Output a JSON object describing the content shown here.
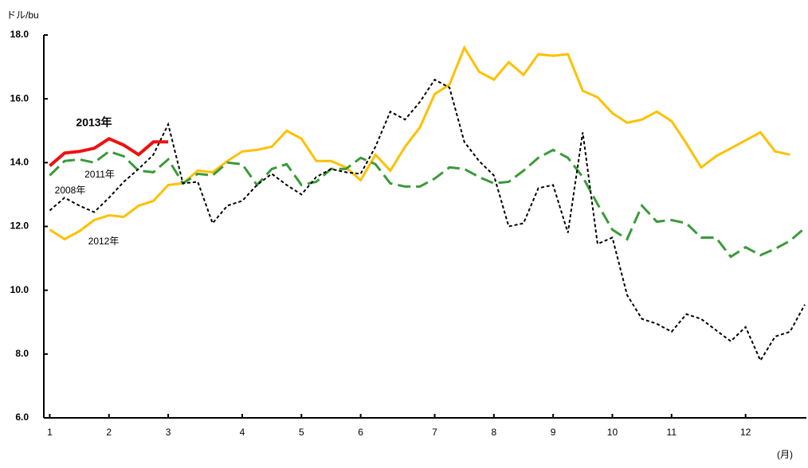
{
  "chart_data": {
    "type": "line",
    "y_unit": "ドル/bu",
    "x_unit": "(月)",
    "xlim": [
      -0.4,
      51
    ],
    "ylim": [
      6,
      18
    ],
    "xticks": [
      {
        "value": 0,
        "label": "1"
      },
      {
        "value": 4,
        "label": "2"
      },
      {
        "value": 8,
        "label": "3"
      },
      {
        "value": 13,
        "label": "4"
      },
      {
        "value": 17,
        "label": "5"
      },
      {
        "value": 21,
        "label": "6"
      },
      {
        "value": 26,
        "label": "7"
      },
      {
        "value": 30,
        "label": "8"
      },
      {
        "value": 34,
        "label": "9"
      },
      {
        "value": 38,
        "label": "10"
      },
      {
        "value": 42,
        "label": "11"
      },
      {
        "value": 47,
        "label": "12"
      }
    ],
    "yticks": [
      {
        "value": 6,
        "label": "6.0"
      },
      {
        "value": 8,
        "label": "8.0"
      },
      {
        "value": 10,
        "label": "10.0"
      },
      {
        "value": 12,
        "label": "12.0"
      },
      {
        "value": 14,
        "label": "14.0"
      },
      {
        "value": 16,
        "label": "16.0"
      },
      {
        "value": 18,
        "label": "18.0"
      }
    ],
    "x": [
      0,
      1,
      2,
      3,
      4,
      5,
      6,
      7,
      8,
      9,
      10,
      11,
      12,
      13,
      14,
      15,
      16,
      17,
      18,
      19,
      20,
      21,
      22,
      23,
      24,
      25,
      26,
      27,
      28,
      29,
      30,
      31,
      32,
      33,
      34,
      35,
      36,
      37,
      38,
      39,
      40,
      41,
      42,
      43,
      44,
      45,
      46,
      47,
      48,
      49,
      50,
      51
    ],
    "series": [
      {
        "name": "2012年",
        "color": "#ffc000",
        "dash": "solid",
        "values": [
          11.9,
          11.6,
          11.85,
          12.2,
          12.35,
          12.3,
          12.65,
          12.8,
          13.3,
          13.35,
          13.75,
          13.7,
          14.05,
          14.35,
          14.4,
          14.5,
          15.0,
          14.75,
          14.05,
          14.05,
          13.85,
          13.45,
          14.25,
          13.75,
          14.5,
          15.1,
          16.15,
          16.45,
          17.6,
          16.85,
          16.6,
          17.15,
          16.75,
          17.4,
          17.35,
          17.4,
          16.25,
          16.05,
          15.55,
          15.25,
          15.35,
          15.6,
          15.3,
          14.6,
          13.85,
          14.2,
          14.45,
          14.7,
          14.95,
          14.35,
          14.25,
          null
        ]
      },
      {
        "name": "2011年",
        "color": "#3a9a3a",
        "dash": "dashed",
        "values": [
          13.6,
          14.05,
          14.1,
          14.0,
          14.35,
          14.2,
          13.75,
          13.7,
          14.1,
          13.35,
          13.65,
          13.6,
          14.0,
          13.95,
          13.3,
          13.8,
          13.95,
          13.3,
          13.4,
          13.8,
          13.8,
          14.15,
          13.95,
          13.35,
          13.25,
          13.25,
          13.5,
          13.85,
          13.8,
          13.55,
          13.35,
          13.4,
          13.75,
          14.15,
          14.4,
          14.15,
          13.55,
          12.7,
          11.9,
          11.6,
          12.65,
          12.15,
          12.2,
          12.1,
          11.65,
          11.65,
          11.05,
          11.35,
          11.1,
          11.3,
          11.55,
          11.95
        ]
      },
      {
        "name": "2008年",
        "color": "#000000",
        "dash": "dotted",
        "values": [
          12.5,
          12.9,
          12.65,
          12.45,
          12.9,
          13.4,
          13.8,
          14.25,
          15.2,
          13.35,
          13.4,
          12.1,
          12.65,
          12.8,
          13.3,
          13.65,
          13.3,
          13.0,
          13.55,
          13.8,
          13.7,
          13.65,
          14.5,
          15.6,
          15.35,
          15.9,
          16.6,
          16.35,
          14.65,
          14.05,
          13.6,
          12.0,
          12.1,
          13.2,
          13.3,
          11.8,
          14.95,
          11.45,
          11.65,
          9.85,
          9.1,
          8.95,
          8.7,
          9.25,
          9.1,
          8.75,
          8.4,
          8.85,
          7.8,
          8.55,
          8.7,
          9.55
        ]
      },
      {
        "name": "2013年",
        "color": "#ee1111",
        "dash": "solid",
        "values": [
          13.9,
          14.3,
          14.35,
          14.45,
          14.75,
          14.55,
          14.25,
          14.65,
          14.65,
          null,
          null,
          null,
          null,
          null,
          null,
          null,
          null,
          null,
          null,
          null,
          null,
          null,
          null,
          null,
          null,
          null,
          null,
          null,
          null,
          null,
          null,
          null,
          null,
          null,
          null,
          null,
          null,
          null,
          null,
          null,
          null,
          null,
          null,
          null,
          null,
          null,
          null,
          null,
          null,
          null,
          null,
          null
        ]
      }
    ]
  }
}
